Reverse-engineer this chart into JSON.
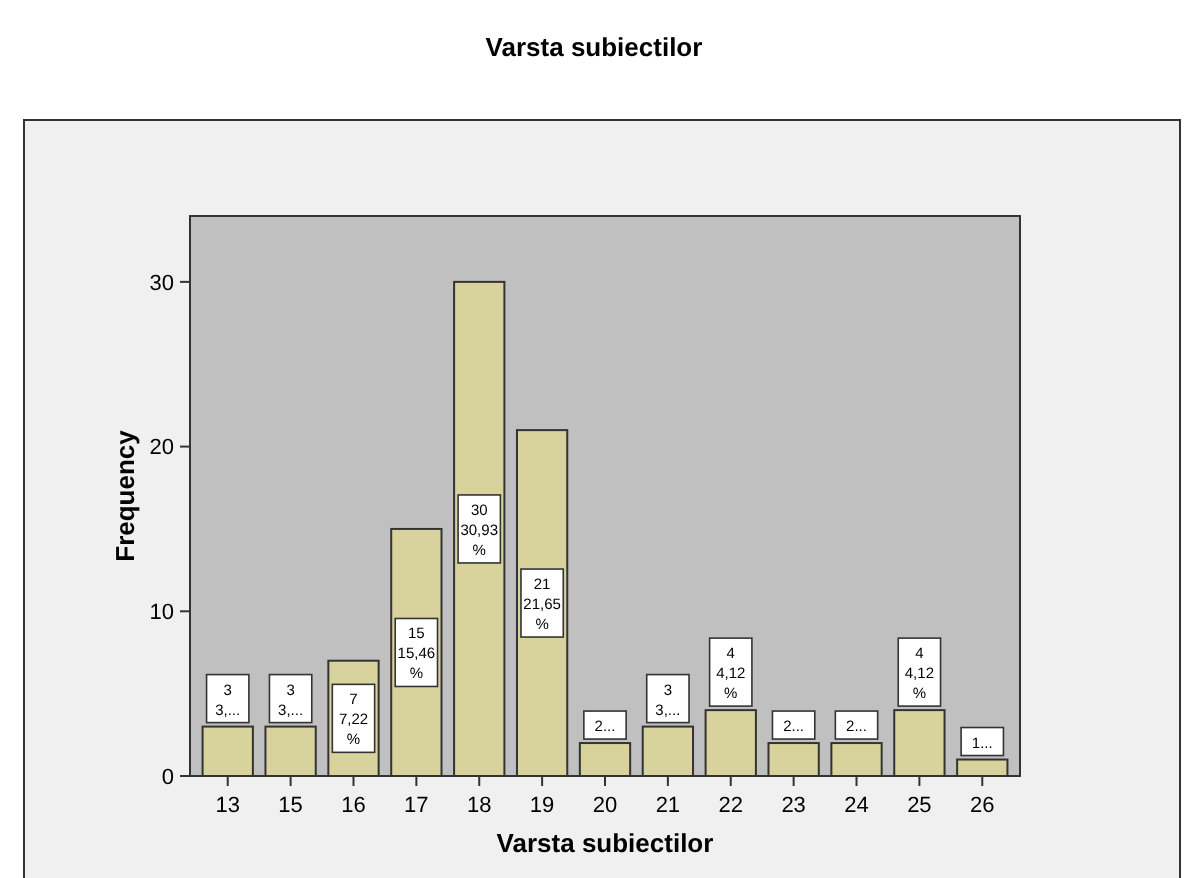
{
  "chart_data": {
    "type": "bar",
    "title": "Varsta subiectilor",
    "xlabel": "Varsta subiectilor",
    "ylabel": "Frequency",
    "categories": [
      "13",
      "15",
      "16",
      "17",
      "18",
      "19",
      "20",
      "21",
      "22",
      "23",
      "24",
      "25",
      "26"
    ],
    "values": [
      3,
      3,
      7,
      15,
      30,
      21,
      2,
      3,
      4,
      2,
      2,
      4,
      1
    ],
    "value_labels": [
      "3\n3,...",
      "3\n3,...",
      "7\n7,22\n%",
      "15\n15,46\n%",
      "30\n30,93\n%",
      "21\n21,65\n%",
      "2...",
      "3\n3,...",
      "4\n4,12\n%",
      "2...",
      "2...",
      "4\n4,12\n%",
      "1..."
    ],
    "color": "#d8d29c",
    "ylim": [
      0,
      34
    ],
    "yticks": [
      0,
      10,
      20,
      30
    ],
    "grid": false
  }
}
